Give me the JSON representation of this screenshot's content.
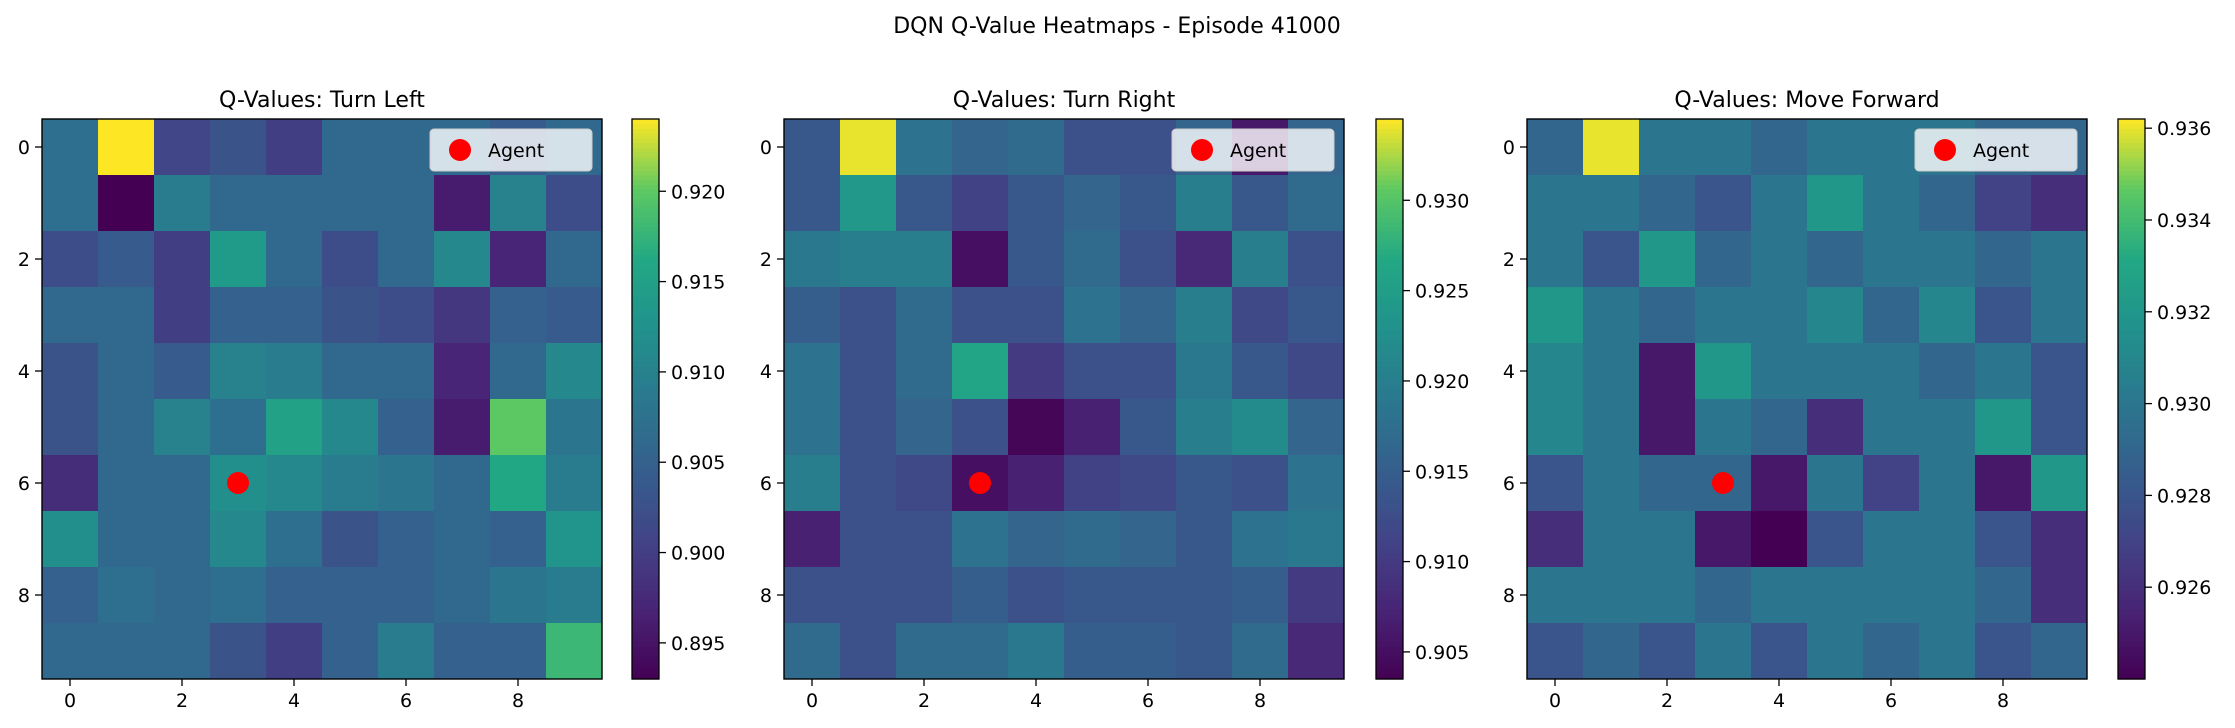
{
  "figure": {
    "suptitle": "DQN Q-Value Heatmaps - Episode 41000"
  },
  "chart_data": [
    {
      "type": "heatmap",
      "title": "Q-Values: Turn Left",
      "xlabel": "",
      "ylabel": "",
      "x_ticks": [
        0,
        2,
        4,
        6,
        8
      ],
      "y_ticks": [
        0,
        2,
        4,
        6,
        8
      ],
      "colormap": "viridis",
      "vmin": 0.893,
      "vmax": 0.924,
      "colorbar_ticks": [
        "0.895",
        "0.900",
        "0.905",
        "0.910",
        "0.915",
        "0.920"
      ],
      "colorbar_tick_values": [
        0.895,
        0.9,
        0.905,
        0.91,
        0.915,
        0.92
      ],
      "grid": false,
      "legend": {
        "label": "Agent",
        "placement": "top-right"
      },
      "agent": {
        "x": 3,
        "y": 6,
        "color": "#ff0000"
      },
      "values": [
        [
          0.907,
          0.924,
          0.901,
          0.903,
          0.9,
          0.906,
          0.906,
          0.906,
          0.904,
          0.906
        ],
        [
          0.907,
          0.893,
          0.909,
          0.906,
          0.906,
          0.906,
          0.906,
          0.896,
          0.91,
          0.902
        ],
        [
          0.902,
          0.904,
          0.9,
          0.914,
          0.906,
          0.902,
          0.906,
          0.911,
          0.897,
          0.906
        ],
        [
          0.906,
          0.906,
          0.9,
          0.905,
          0.905,
          0.903,
          0.902,
          0.899,
          0.905,
          0.904
        ],
        [
          0.903,
          0.906,
          0.904,
          0.91,
          0.909,
          0.906,
          0.906,
          0.897,
          0.906,
          0.911
        ],
        [
          0.903,
          0.906,
          0.91,
          0.907,
          0.915,
          0.911,
          0.905,
          0.896,
          0.92,
          0.908
        ],
        [
          0.898,
          0.906,
          0.906,
          0.912,
          0.911,
          0.909,
          0.908,
          0.906,
          0.916,
          0.909
        ],
        [
          0.912,
          0.906,
          0.906,
          0.911,
          0.907,
          0.903,
          0.905,
          0.906,
          0.905,
          0.913
        ],
        [
          0.905,
          0.907,
          0.906,
          0.907,
          0.905,
          0.905,
          0.905,
          0.906,
          0.908,
          0.909
        ],
        [
          0.906,
          0.906,
          0.906,
          0.903,
          0.9,
          0.905,
          0.909,
          0.905,
          0.905,
          0.918
        ]
      ]
    },
    {
      "type": "heatmap",
      "title": "Q-Values: Turn Right",
      "xlabel": "",
      "ylabel": "",
      "x_ticks": [
        0,
        2,
        4,
        6,
        8
      ],
      "y_ticks": [
        0,
        2,
        4,
        6,
        8
      ],
      "colormap": "viridis",
      "vmin": 0.9035,
      "vmax": 0.9345,
      "colorbar_ticks": [
        "0.905",
        "0.910",
        "0.915",
        "0.920",
        "0.925",
        "0.930"
      ],
      "colorbar_tick_values": [
        0.905,
        0.91,
        0.915,
        0.92,
        0.925,
        0.93
      ],
      "grid": false,
      "legend": {
        "label": "Agent",
        "placement": "top-right"
      },
      "agent": {
        "x": 3,
        "y": 6,
        "color": "#ff0000"
      },
      "values": [
        [
          0.914,
          0.934,
          0.918,
          0.916,
          0.917,
          0.913,
          0.913,
          0.916,
          0.906,
          0.916
        ],
        [
          0.914,
          0.924,
          0.914,
          0.911,
          0.914,
          0.916,
          0.914,
          0.92,
          0.914,
          0.917
        ],
        [
          0.919,
          0.92,
          0.92,
          0.905,
          0.914,
          0.917,
          0.913,
          0.908,
          0.92,
          0.913
        ],
        [
          0.915,
          0.913,
          0.917,
          0.913,
          0.913,
          0.918,
          0.916,
          0.92,
          0.912,
          0.914
        ],
        [
          0.918,
          0.913,
          0.917,
          0.926,
          0.91,
          0.913,
          0.913,
          0.919,
          0.914,
          0.912
        ],
        [
          0.918,
          0.913,
          0.916,
          0.913,
          0.904,
          0.907,
          0.914,
          0.92,
          0.922,
          0.916
        ],
        [
          0.92,
          0.913,
          0.912,
          0.905,
          0.907,
          0.911,
          0.912,
          0.914,
          0.913,
          0.918
        ],
        [
          0.907,
          0.913,
          0.913,
          0.918,
          0.916,
          0.917,
          0.916,
          0.914,
          0.918,
          0.919
        ],
        [
          0.913,
          0.913,
          0.913,
          0.915,
          0.913,
          0.914,
          0.914,
          0.914,
          0.915,
          0.91
        ],
        [
          0.917,
          0.913,
          0.917,
          0.917,
          0.919,
          0.915,
          0.915,
          0.914,
          0.917,
          0.908
        ]
      ]
    },
    {
      "type": "heatmap",
      "title": "Q-Values: Move Forward",
      "xlabel": "",
      "ylabel": "",
      "x_ticks": [
        0,
        2,
        4,
        6,
        8
      ],
      "y_ticks": [
        0,
        2,
        4,
        6,
        8
      ],
      "colormap": "viridis",
      "vmin": 0.924,
      "vmax": 0.9362,
      "colorbar_ticks": [
        "0.926",
        "0.928",
        "0.930",
        "0.932",
        "0.934",
        "0.936"
      ],
      "colorbar_tick_values": [
        0.926,
        0.928,
        0.93,
        0.932,
        0.934,
        0.936
      ],
      "grid": false,
      "legend": {
        "label": "Agent",
        "placement": "top-right"
      },
      "agent": {
        "x": 3,
        "y": 6,
        "color": "#ff0000"
      },
      "values": [
        [
          0.929,
          0.936,
          0.93,
          0.93,
          0.929,
          0.93,
          0.93,
          0.93,
          0.929,
          0.929
        ],
        [
          0.93,
          0.93,
          0.929,
          0.928,
          0.93,
          0.932,
          0.93,
          0.929,
          0.927,
          0.926
        ],
        [
          0.93,
          0.928,
          0.932,
          0.929,
          0.93,
          0.929,
          0.93,
          0.93,
          0.929,
          0.93
        ],
        [
          0.932,
          0.93,
          0.929,
          0.93,
          0.93,
          0.931,
          0.929,
          0.931,
          0.928,
          0.93
        ],
        [
          0.931,
          0.93,
          0.925,
          0.932,
          0.93,
          0.93,
          0.93,
          0.929,
          0.93,
          0.928
        ],
        [
          0.931,
          0.93,
          0.925,
          0.93,
          0.929,
          0.926,
          0.93,
          0.93,
          0.932,
          0.928
        ],
        [
          0.928,
          0.93,
          0.929,
          0.929,
          0.925,
          0.93,
          0.927,
          0.93,
          0.925,
          0.932
        ],
        [
          0.926,
          0.93,
          0.93,
          0.925,
          0.924,
          0.928,
          0.93,
          0.93,
          0.928,
          0.926
        ],
        [
          0.93,
          0.93,
          0.93,
          0.929,
          0.93,
          0.93,
          0.93,
          0.93,
          0.929,
          0.926
        ],
        [
          0.928,
          0.929,
          0.928,
          0.93,
          0.928,
          0.93,
          0.929,
          0.93,
          0.928,
          0.929
        ]
      ]
    }
  ]
}
